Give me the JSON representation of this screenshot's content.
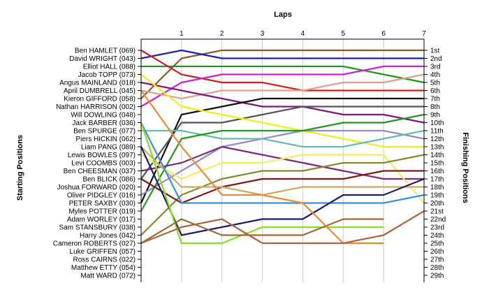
{
  "chart_data": {
    "type": "line",
    "title": "",
    "xlabel": "Laps",
    "ylabel_left": "Starting Positions",
    "ylabel_right": "Finishing Positions",
    "x": [
      0,
      1,
      2,
      3,
      4,
      5,
      6,
      7
    ],
    "x_tick_labels": [
      "1",
      "2",
      "3",
      "4",
      "5",
      "6",
      "7"
    ],
    "position_count": 29,
    "start_labels": [
      "Ben HAMLET (069)",
      "David WRIGHT (043)",
      "Elliot HALL (088)",
      "Jacob TOPP (073)",
      "Angus MAINLAND (018)",
      "April DUMBRELL (045)",
      "Kieron GIFFORD (058)",
      "Nathan HARRISON (002)",
      "Will DOWLING (048)",
      "Jack BARBER (036)",
      "Ben SPURGE (077)",
      "Piers HICKIN (062)",
      "Liam PANG (089)",
      "Lewis BOWLES (097)",
      "Levi COOMBS (003)",
      "Ben CHEESMAN (037)",
      "Ben BLICK (086)",
      "Joshua FORWARD (020)",
      "Oliver PIDGLEY (016)",
      "PETER SAXBY (030)",
      "Myles POTTER (019)",
      "Adam WORLEY (017)",
      "Sam STANSBURY (038)",
      "Harry Jones (042)",
      "Cameron ROBERTS (027)",
      "Luke GRIFFEN (057)",
      "Ross CAIRNS (022)",
      "Matthew ETTY (054)",
      "Matt WARD (072)"
    ],
    "finish_labels": [
      "1st",
      "2nd",
      "3rd",
      "4th",
      "5th",
      "6th",
      "7th",
      "8th",
      "9th",
      "10th",
      "11th",
      "12th",
      "13th",
      "14th",
      "15th",
      "16th",
      "17th",
      "18th",
      "19th",
      "20th",
      "21st",
      "22nd",
      "23rd",
      "24th",
      "25th",
      "26th",
      "27th",
      "28th",
      "29th"
    ],
    "series": [
      {
        "color": "#8B5A2B",
        "values": [
          7,
          2,
          1,
          1,
          1,
          1,
          1,
          1
        ]
      },
      {
        "color": "#1F1FB4",
        "values": [
          2,
          1,
          2,
          2,
          2,
          2,
          2,
          2
        ]
      },
      {
        "color": "#1A9A1A",
        "values": [
          3,
          3,
          3,
          3,
          3,
          3,
          4,
          5
        ]
      },
      {
        "color": "#CC2222",
        "values": [
          1,
          4,
          5,
          5,
          6,
          6,
          6,
          6
        ]
      },
      {
        "color": "#CC22CC",
        "values": [
          8,
          5,
          4,
          4,
          4,
          4,
          3,
          3
        ]
      },
      {
        "color": "#DDA090",
        "values": [
          6,
          7,
          6,
          6,
          6,
          5,
          5,
          4
        ]
      },
      {
        "color": "#7A1A7A",
        "values": [
          5,
          6,
          7,
          8,
          8,
          9,
          9,
          10
        ]
      },
      {
        "color": "#111111",
        "values": [
          20,
          9,
          8,
          7,
          7,
          7,
          7,
          7
        ]
      },
      {
        "color": "#555555",
        "values": [
          17,
          10,
          10,
          9,
          8,
          8,
          8,
          8
        ]
      },
      {
        "color": "#EEEE22",
        "values": [
          4,
          8,
          9,
          10,
          11,
          12,
          13,
          13
        ]
      },
      {
        "color": "#9988CC",
        "values": [
          19,
          16,
          13,
          12,
          11,
          11,
          11,
          12
        ]
      },
      {
        "color": "#66BBAA",
        "values": [
          11,
          11,
          12,
          12,
          13,
          13,
          12,
          11
        ]
      },
      {
        "color": "#229922",
        "values": [
          21,
          12,
          11,
          11,
          11,
          10,
          10,
          9
        ]
      },
      {
        "color": "#7A2A7A",
        "values": [
          16,
          15,
          13,
          14,
          15,
          16,
          17,
          17
        ]
      },
      {
        "color": "#EEEE66",
        "values": [
          14,
          17,
          15,
          15,
          14,
          14,
          14,
          20
        ]
      },
      {
        "color": "#888833",
        "values": [
          24,
          19,
          17,
          16,
          16,
          15,
          15,
          14
        ]
      },
      {
        "color": "#7A1A1A",
        "values": [
          17,
          20,
          18,
          17,
          17,
          17,
          16,
          16
        ]
      },
      {
        "color": "#CCAA66",
        "values": [
          13,
          18,
          18,
          19,
          18,
          18,
          18,
          18
        ]
      },
      {
        "color": "#3B8FE0",
        "values": [
          10,
          20,
          20,
          20,
          20,
          20,
          20,
          19
        ]
      },
      {
        "color": "#1F1F66",
        "values": [
          13,
          24,
          23,
          22,
          22,
          19,
          19,
          17
        ]
      },
      {
        "color": "#88DD22",
        "values": [
          10,
          25,
          25,
          23,
          23,
          23,
          23,
          null
        ]
      },
      {
        "color": "#9A6A3A",
        "values": [
          25,
          22,
          24,
          24,
          24,
          22,
          22,
          null
        ]
      },
      {
        "color": "#EE8833",
        "values": [
          6,
          13,
          19,
          19,
          20,
          25,
          25,
          null
        ]
      },
      {
        "color": "#AA6644",
        "values": [
          25,
          23,
          22,
          25,
          25,
          25,
          24,
          21
        ]
      }
    ]
  }
}
